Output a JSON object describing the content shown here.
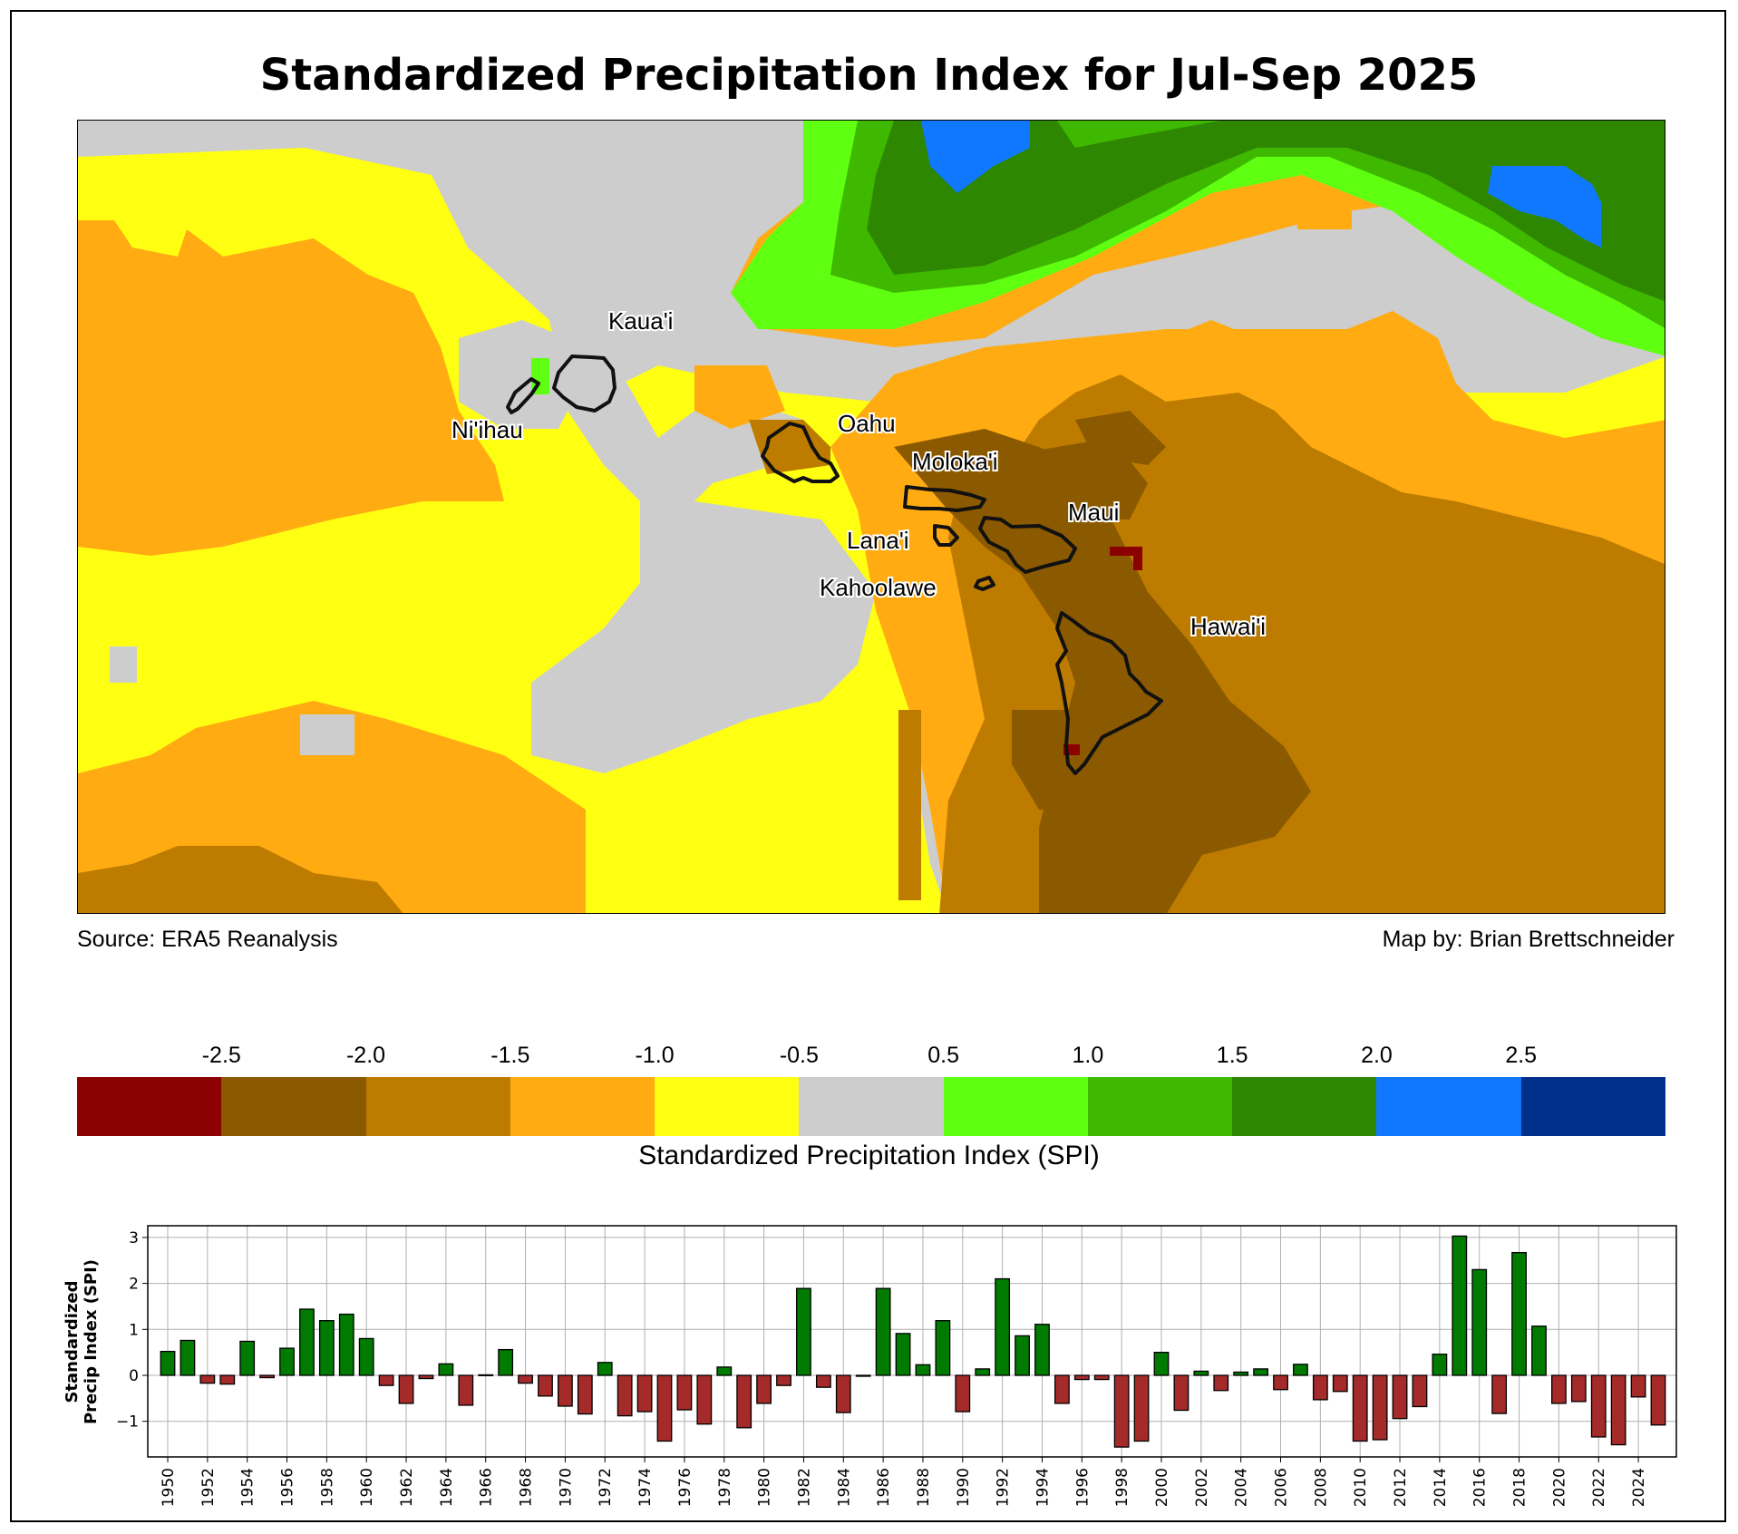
{
  "title": "Standardized Precipitation Index for Jul-Sep 2025",
  "map": {
    "source": "Source: ERA5 Reanalysis",
    "credit": "Map by: Brian Brettschneider",
    "island_labels": [
      "Kaua'i",
      "Ni'ihau",
      "Oahu",
      "Moloka'i",
      "Lana'i",
      "Kahoolawe",
      "Maui",
      "Hawai'i"
    ]
  },
  "colorbar": {
    "label": "Standardized Precipitation Index (SPI)",
    "ticks": [
      "-2.5",
      "-2.0",
      "-1.5",
      "-1.0",
      "-0.5",
      "0.5",
      "1.0",
      "1.5",
      "2.0",
      "2.5"
    ],
    "colors": [
      "#8b0000",
      "#8b5a00",
      "#bd7b00",
      "#ffab11",
      "#ffff11",
      "#cdcdcd",
      "#5fff11",
      "#3fb900",
      "#2e8700",
      "#0f78ff",
      "#003089"
    ]
  },
  "chart_data": {
    "type": "bar",
    "title": "",
    "xlabel": "",
    "ylabel": "Standardized Precip Index (SPI)",
    "ylim": [
      -1.8,
      3.3
    ],
    "yticks": [
      "3",
      "2",
      "1",
      "0",
      "−1"
    ],
    "ytick_values": [
      3,
      2,
      1,
      0,
      -1
    ],
    "grid": true,
    "positive_color": "#007a00",
    "negative_color": "#a52a2a",
    "xtick_labels": [
      "1950",
      "1952",
      "1954",
      "1956",
      "1958",
      "1960",
      "1962",
      "1964",
      "1966",
      "1968",
      "1970",
      "1972",
      "1974",
      "1976",
      "1978",
      "1980",
      "1982",
      "1984",
      "1986",
      "1988",
      "1990",
      "1992",
      "1994",
      "1996",
      "1998",
      "2000",
      "2002",
      "2004",
      "2006",
      "2008",
      "2010",
      "2012",
      "2014",
      "2016",
      "2018",
      "2020",
      "2022",
      "2024"
    ],
    "x": [
      1950,
      1951,
      1952,
      1953,
      1954,
      1955,
      1956,
      1957,
      1958,
      1959,
      1960,
      1961,
      1962,
      1963,
      1964,
      1965,
      1966,
      1967,
      1968,
      1969,
      1970,
      1971,
      1972,
      1973,
      1974,
      1975,
      1976,
      1977,
      1978,
      1979,
      1980,
      1981,
      1982,
      1983,
      1984,
      1985,
      1986,
      1987,
      1988,
      1989,
      1990,
      1991,
      1992,
      1993,
      1994,
      1995,
      1996,
      1997,
      1998,
      1999,
      2000,
      2001,
      2002,
      2003,
      2004,
      2005,
      2006,
      2007,
      2008,
      2009,
      2010,
      2011,
      2012,
      2013,
      2014,
      2015,
      2016,
      2017,
      2018,
      2019,
      2020,
      2021,
      2022,
      2023,
      2024,
      2025
    ],
    "values": [
      0.52,
      0.76,
      -0.17,
      -0.19,
      0.74,
      -0.05,
      0.59,
      1.44,
      1.19,
      1.33,
      0.8,
      -0.22,
      -0.61,
      -0.07,
      0.25,
      -0.65,
      0.01,
      0.56,
      -0.17,
      -0.45,
      -0.67,
      -0.84,
      0.28,
      -0.88,
      -0.79,
      -1.43,
      -0.75,
      -1.06,
      0.18,
      -1.14,
      -0.61,
      -0.22,
      1.89,
      -0.26,
      -0.81,
      -0.02,
      1.89,
      0.91,
      0.23,
      1.19,
      -0.79,
      0.14,
      2.1,
      0.86,
      1.11,
      -0.61,
      -0.09,
      -0.09,
      -1.56,
      -1.43,
      0.5,
      -0.76,
      0.09,
      -0.33,
      0.07,
      0.14,
      -0.31,
      0.24,
      -0.53,
      -0.35,
      -1.43,
      -1.4,
      -0.94,
      -0.68,
      0.46,
      3.03,
      2.3,
      -0.83,
      2.67,
      1.07,
      -0.61,
      -0.57,
      -1.34,
      -1.51,
      -0.47,
      -1.08
    ]
  }
}
